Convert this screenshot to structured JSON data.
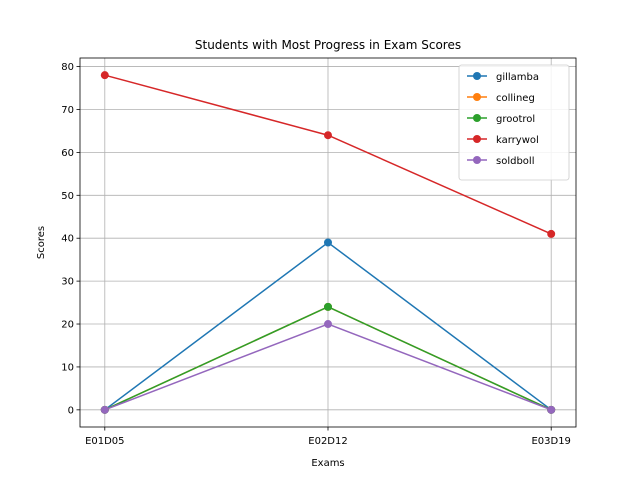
{
  "chart_data": {
    "type": "line",
    "title": "Students with Most Progress in Exam Scores",
    "xlabel": "Exams",
    "ylabel": "Scores",
    "categories": [
      "E01D05",
      "E02D12",
      "E03D19"
    ],
    "ylim": [
      -4,
      82
    ],
    "yticks": [
      0,
      10,
      20,
      30,
      40,
      50,
      60,
      70,
      80
    ],
    "grid": true,
    "legend_position": "top-right",
    "series": [
      {
        "name": "gillamba",
        "color": "#1f77b4",
        "values": [
          0,
          39,
          0
        ]
      },
      {
        "name": "collineg",
        "color": "#ff7f0e",
        "values": [
          0,
          24,
          0
        ]
      },
      {
        "name": "grootrol",
        "color": "#2ca02c",
        "values": [
          0,
          24,
          0
        ]
      },
      {
        "name": "karrywol",
        "color": "#d62728",
        "values": [
          78,
          64,
          41
        ]
      },
      {
        "name": "soldboll",
        "color": "#9467bd",
        "values": [
          0,
          20,
          0
        ]
      }
    ]
  }
}
